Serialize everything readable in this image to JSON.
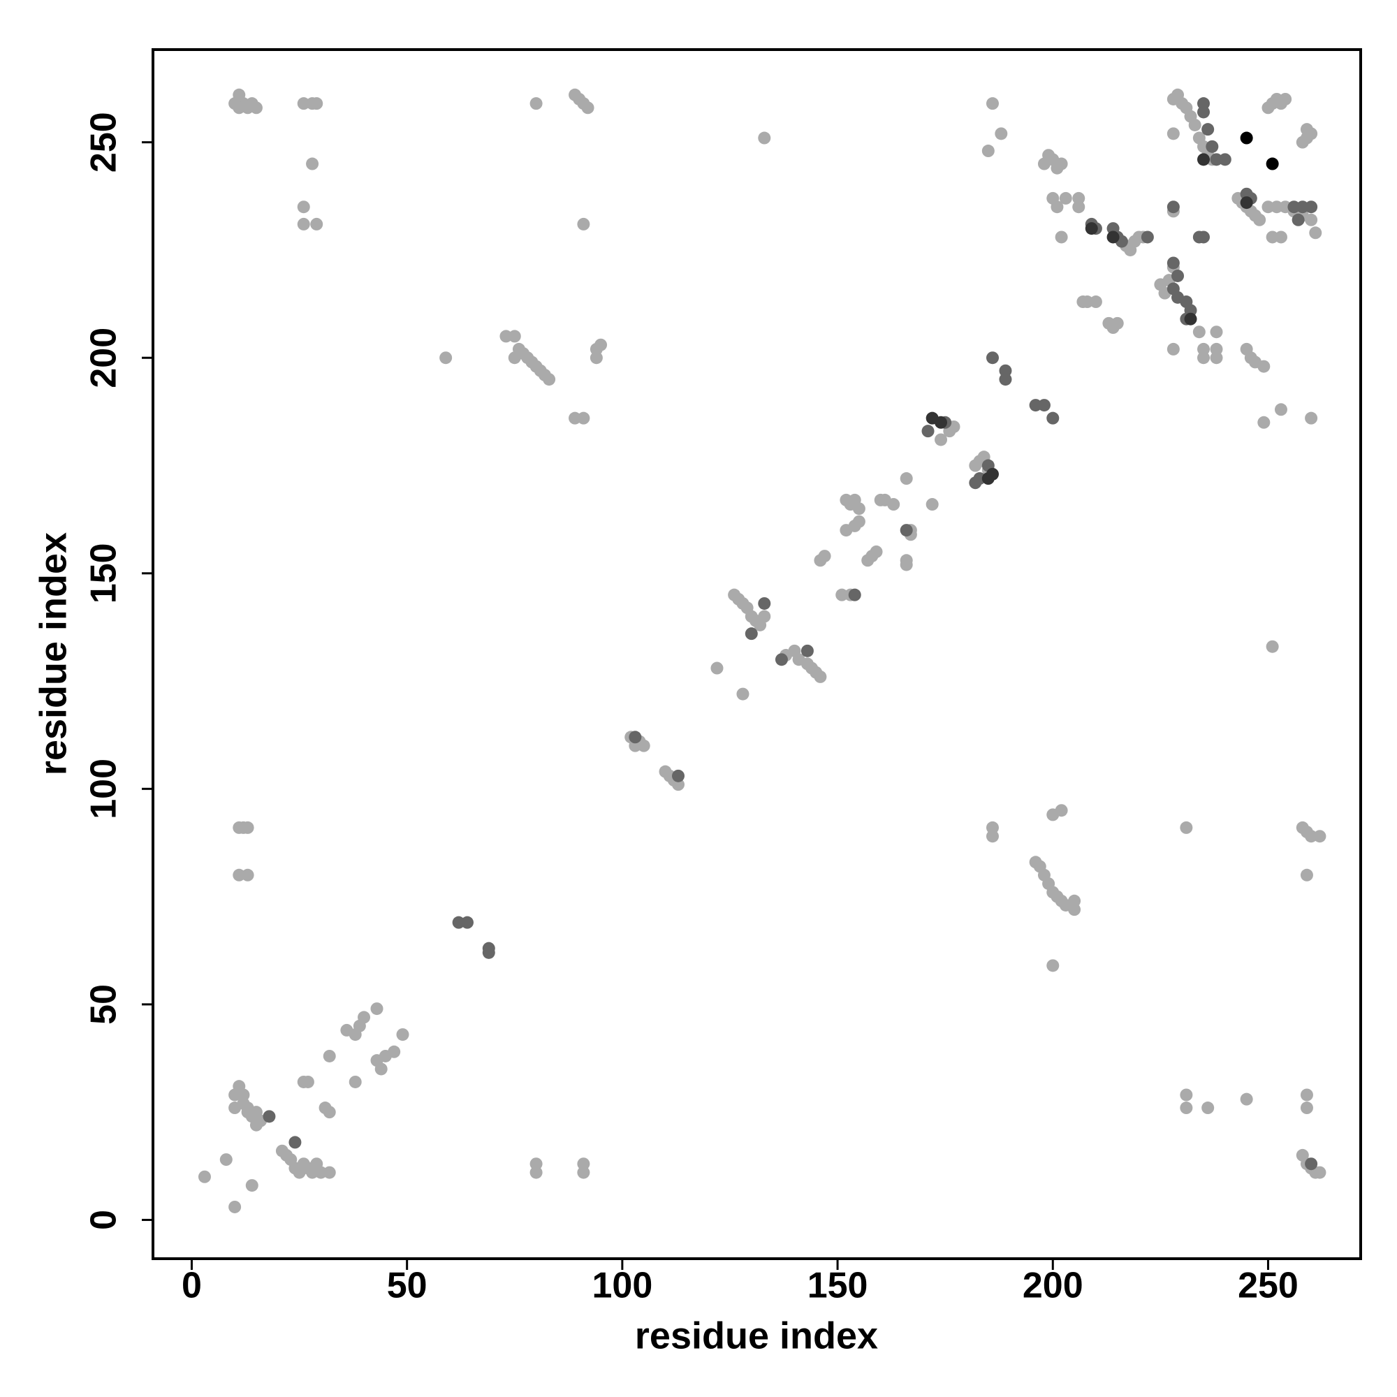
{
  "chart_data": {
    "type": "scatter",
    "x_label": "residue index",
    "y_label": "residue index",
    "xlim": [
      -9,
      271.5
    ],
    "ylim": [
      -9,
      271.5
    ],
    "xticks": [
      0,
      50,
      100,
      150,
      200,
      250
    ],
    "yticks": [
      0,
      50,
      100,
      150,
      200,
      250
    ],
    "grid": false,
    "series": [
      {
        "color": "#aaaaaa",
        "x": [
          3,
          8,
          10,
          14,
          10,
          11,
          12,
          13,
          14,
          15,
          10,
          12,
          13,
          15,
          16,
          21,
          22,
          23,
          24,
          25,
          26,
          27,
          28,
          29,
          30,
          32,
          26,
          27,
          32,
          31,
          32,
          38,
          36,
          38,
          39,
          40,
          43,
          43,
          44,
          45,
          47,
          49,
          11,
          12,
          13,
          11,
          13,
          10,
          11,
          12,
          13,
          14,
          15,
          11,
          26,
          28,
          29,
          28,
          26,
          26,
          29,
          80,
          89,
          90,
          91,
          92,
          91,
          89,
          91,
          59,
          73,
          75,
          76,
          77,
          78,
          79,
          80,
          81,
          82,
          83,
          75,
          94,
          95,
          94,
          80,
          80,
          91,
          91,
          133,
          122,
          128,
          102,
          103,
          104,
          105,
          110,
          111,
          112,
          113,
          126,
          127,
          128,
          129,
          130,
          131,
          132,
          133,
          138,
          140,
          141,
          143,
          144,
          145,
          146,
          146,
          147,
          152,
          153,
          154,
          155,
          152,
          154,
          155,
          151,
          153,
          157,
          158,
          159,
          160,
          161,
          163,
          166,
          166,
          166,
          167,
          167,
          172,
          174,
          176,
          177,
          182,
          183,
          184,
          185,
          185,
          186,
          188,
          186,
          186,
          196,
          197,
          198,
          199,
          200,
          201,
          202,
          203,
          205,
          205,
          200,
          202,
          200,
          198,
          199,
          200,
          201,
          202,
          200,
          201,
          203,
          202,
          206,
          206,
          207,
          208,
          210,
          214,
          213,
          215,
          217,
          218,
          219,
          220,
          221,
          225,
          226,
          227,
          228,
          228,
          229,
          230,
          231,
          232,
          233,
          234,
          235,
          236,
          237,
          228,
          228,
          228,
          231,
          231,
          231,
          236,
          234,
          235,
          235,
          238,
          238,
          238,
          243,
          244,
          245,
          246,
          247,
          248,
          245,
          246,
          247,
          249,
          249,
          250,
          251,
          252,
          253,
          254,
          251,
          253,
          250,
          252,
          254,
          256,
          258,
          260,
          261,
          260,
          259,
          258,
          259,
          260,
          251,
          253,
          245,
          258,
          259,
          260,
          262,
          259,
          258,
          259,
          260,
          261,
          262,
          259,
          259
        ],
        "y": [
          10,
          14,
          3,
          8,
          29,
          31,
          27,
          25,
          24,
          22,
          26,
          29,
          26,
          25,
          23,
          16,
          15,
          14,
          12,
          11,
          13,
          12,
          11,
          13,
          11,
          11,
          32,
          32,
          25,
          26,
          38,
          32,
          44,
          43,
          45,
          47,
          49,
          37,
          35,
          38,
          39,
          43,
          91,
          91,
          91,
          80,
          80,
          259,
          261,
          259,
          258,
          259,
          258,
          258,
          259,
          259,
          259,
          245,
          235,
          231,
          231,
          259,
          261,
          260,
          259,
          258,
          231,
          186,
          186,
          200,
          205,
          205,
          202,
          201,
          200,
          199,
          198,
          197,
          196,
          195,
          200,
          200,
          203,
          202,
          13,
          11,
          13,
          11,
          251,
          128,
          122,
          112,
          110,
          111,
          110,
          104,
          103,
          102,
          101,
          145,
          144,
          143,
          142,
          140,
          139,
          138,
          140,
          131,
          132,
          130,
          129,
          128,
          127,
          126,
          153,
          154,
          167,
          166,
          167,
          165,
          160,
          161,
          162,
          145,
          145,
          153,
          154,
          155,
          167,
          167,
          166,
          172,
          153,
          152,
          159,
          160,
          166,
          181,
          183,
          184,
          175,
          176,
          177,
          174,
          248,
          259,
          252,
          91,
          89,
          83,
          82,
          80,
          78,
          76,
          75,
          74,
          73,
          72,
          74,
          94,
          95,
          59,
          245,
          247,
          246,
          244,
          245,
          237,
          235,
          237,
          228,
          237,
          235,
          213,
          213,
          213,
          207,
          208,
          208,
          226,
          225,
          227,
          228,
          228,
          217,
          215,
          218,
          221,
          260,
          261,
          259,
          258,
          256,
          254,
          251,
          249,
          248,
          246,
          252,
          234,
          202,
          91,
          29,
          26,
          26,
          206,
          202,
          200,
          206,
          200,
          202,
          237,
          236,
          235,
          234,
          233,
          232,
          202,
          200,
          199,
          198,
          185,
          258,
          259,
          260,
          259,
          260,
          228,
          228,
          235,
          235,
          235,
          234,
          233,
          232,
          229,
          252,
          251,
          250,
          253,
          186,
          133,
          188,
          28,
          91,
          90,
          89,
          89,
          80,
          15,
          13,
          12,
          11,
          11,
          29,
          26
        ]
      },
      {
        "color": "#666666",
        "x": [
          18,
          24,
          62,
          64,
          69,
          69,
          103,
          113,
          130,
          133,
          137,
          143,
          154,
          166,
          171,
          175,
          182,
          183,
          185,
          186,
          189,
          189,
          196,
          198,
          200,
          209,
          210,
          214,
          215,
          216,
          222,
          228,
          229,
          228,
          229,
          231,
          232,
          231,
          228,
          234,
          235,
          235,
          235,
          236,
          237,
          238,
          240,
          245,
          246,
          256,
          258,
          260,
          257,
          260
        ],
        "y": [
          24,
          18,
          69,
          69,
          63,
          62,
          112,
          103,
          136,
          143,
          130,
          132,
          145,
          160,
          183,
          185,
          171,
          172,
          175,
          200,
          197,
          195,
          189,
          189,
          186,
          231,
          230,
          230,
          228,
          227,
          228,
          222,
          219,
          216,
          214,
          213,
          211,
          209,
          235,
          228,
          228,
          259,
          257,
          253,
          249,
          246,
          246,
          238,
          237,
          235,
          235,
          235,
          232,
          13
        ]
      },
      {
        "color": "#333333",
        "x": [
          172,
          174,
          185,
          186,
          209,
          214,
          232,
          235,
          245
        ],
        "y": [
          186,
          185,
          172,
          173,
          230,
          228,
          209,
          246,
          236
        ]
      },
      {
        "color": "#000000",
        "x": [
          245,
          251
        ],
        "y": [
          251,
          245
        ]
      }
    ]
  }
}
